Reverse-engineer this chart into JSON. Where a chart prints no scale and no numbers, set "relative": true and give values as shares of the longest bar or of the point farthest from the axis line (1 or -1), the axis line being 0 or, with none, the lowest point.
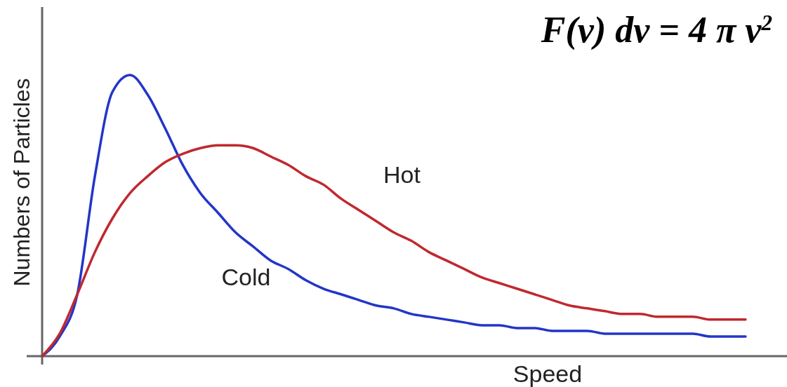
{
  "chart_data": {
    "type": "line",
    "relative": true,
    "xlabel": "Speed",
    "ylabel": "Numbers of Particles",
    "annotations": [
      "F(v) dv = 4 π v$^{2}$"
    ],
    "categories": [
      null,
      null,
      null,
      null,
      null,
      null,
      null,
      null,
      null,
      null,
      null,
      null,
      null,
      null,
      null,
      null,
      null,
      null,
      null,
      null,
      null,
      null,
      null,
      null,
      null,
      null,
      null,
      null,
      null,
      null,
      null,
      null,
      null,
      null,
      null,
      null,
      null,
      null,
      null,
      null,
      null
    ],
    "series": [
      {
        "name": "Cold",
        "color": "#2335c8",
        "values": [
          0,
          0.07,
          0.22,
          0.64,
          0.94,
          1.0,
          0.93,
          0.81,
          0.68,
          0.58,
          0.51,
          0.44,
          0.39,
          0.34,
          0.31,
          0.27,
          0.24,
          0.22,
          0.2,
          0.18,
          0.17,
          0.15,
          0.14,
          0.13,
          0.12,
          0.11,
          0.11,
          0.1,
          0.1,
          0.09,
          0.09,
          0.09,
          0.08,
          0.08,
          0.08,
          0.08,
          0.08,
          0.08,
          0.07,
          0.07,
          0.07
        ]
      },
      {
        "name": "Hot",
        "color": "#c0282f",
        "values": [
          0,
          0.08,
          0.22,
          0.37,
          0.49,
          0.58,
          0.64,
          0.69,
          0.72,
          0.74,
          0.75,
          0.75,
          0.74,
          0.71,
          0.68,
          0.64,
          0.61,
          0.56,
          0.52,
          0.48,
          0.44,
          0.41,
          0.37,
          0.34,
          0.31,
          0.28,
          0.26,
          0.24,
          0.22,
          0.2,
          0.18,
          0.17,
          0.16,
          0.15,
          0.15,
          0.14,
          0.14,
          0.14,
          0.13,
          0.13,
          0.13
        ]
      }
    ]
  }
}
